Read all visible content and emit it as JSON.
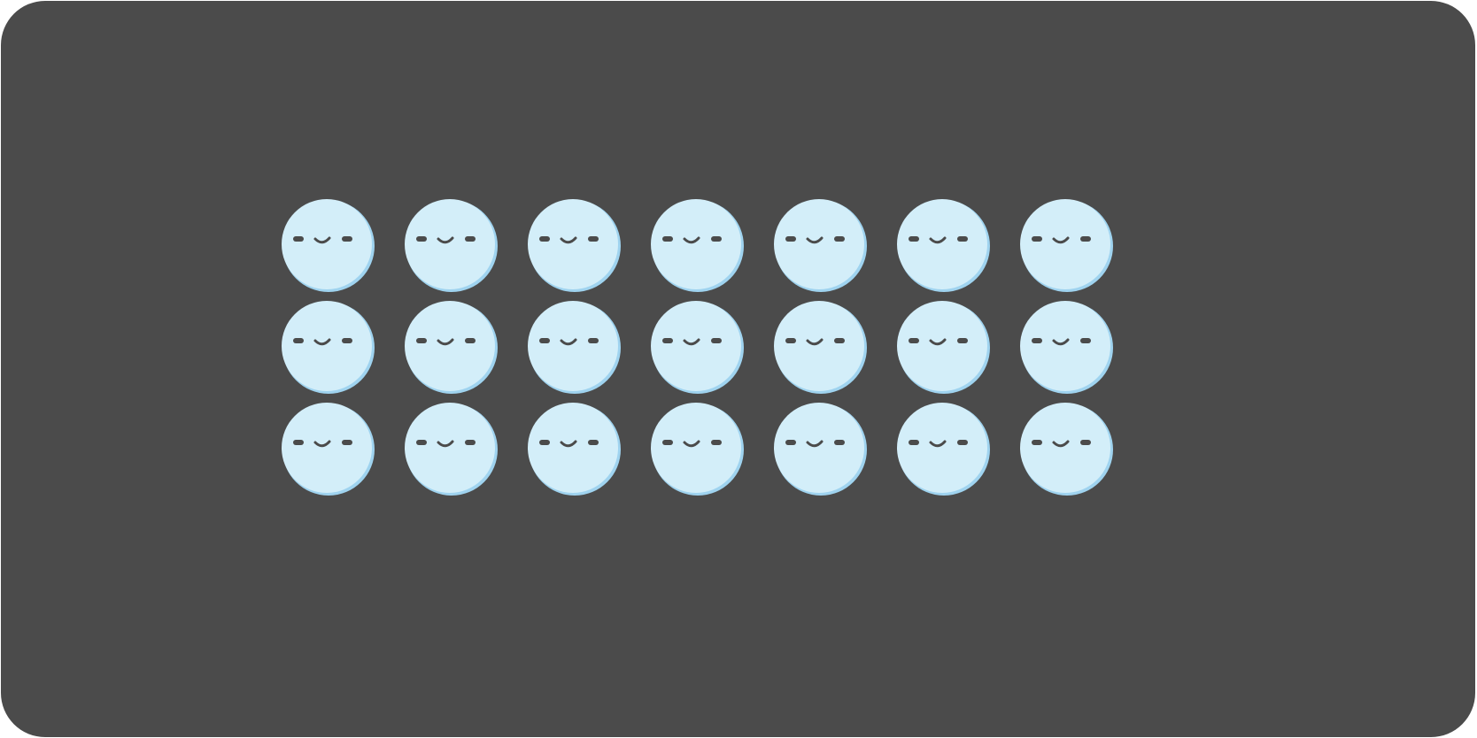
{
  "canvas": {
    "background_color": "#4b4b4b",
    "page_color": "#ffffff"
  },
  "faces": {
    "rows": 3,
    "columns": 7,
    "icon": "sleepy-face-icon",
    "fill_color": "#d3eef9",
    "shadow_color": "#9fd3ef",
    "feature_color": "#4b4b4b"
  }
}
